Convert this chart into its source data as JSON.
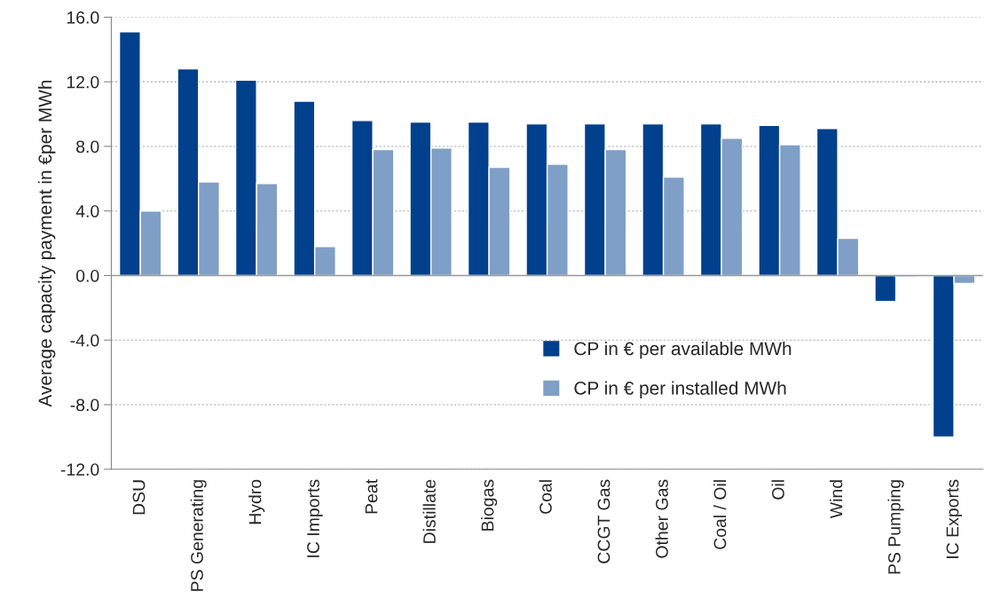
{
  "chart_data": {
    "type": "bar",
    "ylabel": "Average capacity payment in €per MWh",
    "categories": [
      "DSU",
      "PS Generating",
      "Hydro",
      "IC Imports",
      "Peat",
      "Distillate",
      "Biogas",
      "Coal",
      "CCGT Gas",
      "Other Gas",
      "Coal / Oil",
      "Oil",
      "Wind",
      "PS Pumping",
      "IC Exports"
    ],
    "series": [
      {
        "name": "CP in € per available MWh",
        "color": "#00408c",
        "values": [
          15.1,
          12.8,
          12.1,
          10.8,
          9.6,
          9.5,
          9.5,
          9.4,
          9.4,
          9.4,
          9.4,
          9.3,
          9.1,
          -1.6,
          -10.0
        ]
      },
      {
        "name": "CP in € per installed MWh",
        "color": "#7f9fc7",
        "values": [
          4.0,
          5.8,
          5.7,
          1.8,
          7.8,
          7.9,
          6.7,
          6.9,
          7.8,
          6.1,
          8.5,
          8.1,
          2.3,
          -0.1,
          -0.5
        ]
      }
    ],
    "ylim": [
      -12,
      16
    ],
    "yticks": [
      {
        "value": -12,
        "label": "-12.0"
      },
      {
        "value": -8,
        "label": "-8.0"
      },
      {
        "value": -4,
        "label": "-4.0"
      },
      {
        "value": 0,
        "label": "0.0"
      },
      {
        "value": 4,
        "label": "4.0"
      },
      {
        "value": 8,
        "label": "8.0"
      },
      {
        "value": 12,
        "label": "12.0"
      },
      {
        "value": 16,
        "label": "16.0"
      }
    ],
    "ref_lines": [
      {
        "axis": "y",
        "value": 0,
        "color": "#999999"
      }
    ],
    "grid": "y",
    "legend": "bottom right"
  }
}
